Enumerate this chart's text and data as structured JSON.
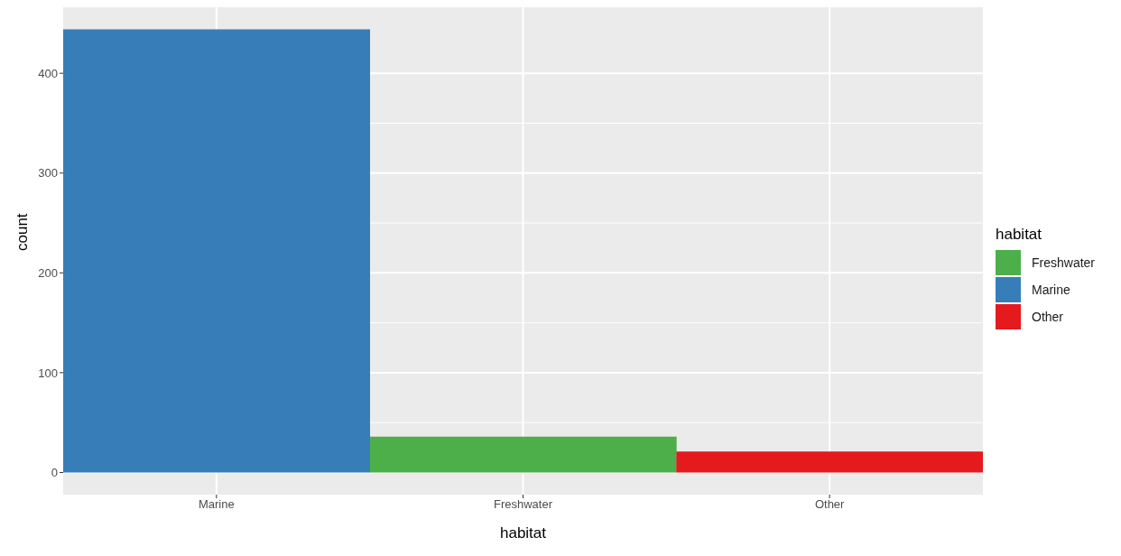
{
  "chart_data": {
    "type": "bar",
    "xlabel": "habitat",
    "ylabel": "count",
    "legend_title": "habitat",
    "categories": [
      "Marine",
      "Freshwater",
      "Other"
    ],
    "stacked": true,
    "series": [
      {
        "name": "Freshwater",
        "color": "#4daf4a",
        "values": [
          null,
          36,
          null
        ]
      },
      {
        "name": "Marine",
        "color": "#377eb8",
        "values": [
          444,
          null,
          null
        ]
      },
      {
        "name": "Other",
        "color": "#e41a1c",
        "values": [
          null,
          null,
          21
        ]
      }
    ],
    "ylim": [
      -22.2,
      466.2
    ],
    "yticks": [
      0,
      100,
      200,
      300,
      400
    ],
    "grid": true,
    "legend": "right"
  }
}
